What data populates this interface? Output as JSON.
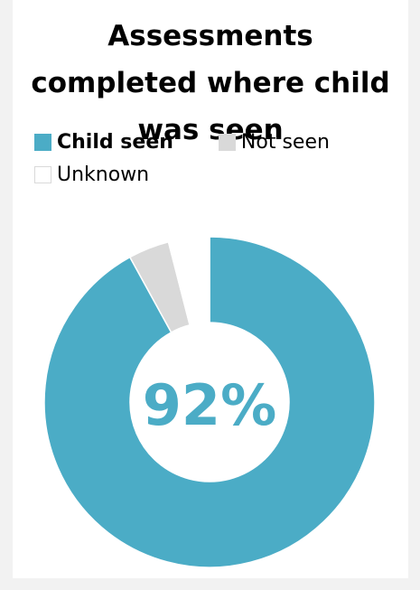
{
  "chart_data": {
    "type": "donut",
    "title": "Assessments completed where child was seen",
    "categories": [
      "Child seen",
      "Not seen",
      "Unknown"
    ],
    "values": [
      92,
      4,
      4
    ],
    "colors": [
      "#4bacc6",
      "#d9d9d9",
      "#ffffff"
    ],
    "center_label": "92%"
  }
}
